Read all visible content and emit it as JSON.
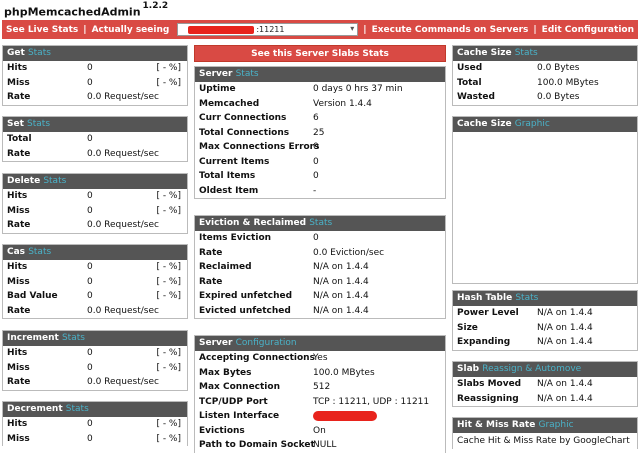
{
  "app": {
    "title": "phpMemcachedAdmin",
    "version": "1.2.2"
  },
  "topbar": {
    "live_stats": "See Live Stats",
    "actually_seeing": "Actually seeing",
    "server_port": ":11211",
    "execute_commands": "Execute Commands on Servers",
    "edit_configuration": "Edit Configuration"
  },
  "left": {
    "get": {
      "title": "Get",
      "accent": "Stats",
      "rows": [
        {
          "k": "Hits",
          "v": "0",
          "p": "[ - %]"
        },
        {
          "k": "Miss",
          "v": "0",
          "p": "[ - %]"
        },
        {
          "k": "Rate",
          "v": "0.0 Request/sec",
          "p": ""
        }
      ]
    },
    "set": {
      "title": "Set",
      "accent": "Stats",
      "rows": [
        {
          "k": "Total",
          "v": "0",
          "p": ""
        },
        {
          "k": "Rate",
          "v": "0.0 Request/sec",
          "p": ""
        }
      ]
    },
    "delete": {
      "title": "Delete",
      "accent": "Stats",
      "rows": [
        {
          "k": "Hits",
          "v": "0",
          "p": "[ - %]"
        },
        {
          "k": "Miss",
          "v": "0",
          "p": "[ - %]"
        },
        {
          "k": "Rate",
          "v": "0.0 Request/sec",
          "p": ""
        }
      ]
    },
    "cas": {
      "title": "Cas",
      "accent": "Stats",
      "rows": [
        {
          "k": "Hits",
          "v": "0",
          "p": "[ - %]"
        },
        {
          "k": "Miss",
          "v": "0",
          "p": "[ - %]"
        },
        {
          "k": "Bad Value",
          "v": "0",
          "p": "[ - %]"
        },
        {
          "k": "Rate",
          "v": "0.0 Request/sec",
          "p": ""
        }
      ]
    },
    "increment": {
      "title": "Increment",
      "accent": "Stats",
      "rows": [
        {
          "k": "Hits",
          "v": "0",
          "p": "[ - %]"
        },
        {
          "k": "Miss",
          "v": "0",
          "p": "[ - %]"
        },
        {
          "k": "Rate",
          "v": "0.0 Request/sec",
          "p": ""
        }
      ]
    },
    "decrement": {
      "title": "Decrement",
      "accent": "Stats",
      "rows": [
        {
          "k": "Hits",
          "v": "0",
          "p": "[ - %]"
        },
        {
          "k": "Miss",
          "v": "0",
          "p": "[ - %]"
        }
      ]
    }
  },
  "middle": {
    "slabs_button": "See this Server Slabs Stats",
    "server_stats": {
      "title": "Server",
      "accent": "Stats",
      "rows": [
        {
          "k": "Uptime",
          "v": "0 days 0 hrs 37 min"
        },
        {
          "k": "Memcached",
          "v": "Version 1.4.4"
        },
        {
          "k": "Curr Connections",
          "v": "6"
        },
        {
          "k": "Total Connections",
          "v": "25"
        },
        {
          "k": "Max Connections Errors",
          "v": "0"
        },
        {
          "k": "Current Items",
          "v": "0"
        },
        {
          "k": "Total Items",
          "v": "0"
        },
        {
          "k": "Oldest Item",
          "v": "-"
        }
      ]
    },
    "eviction": {
      "title": "Eviction & Reclaimed",
      "accent": "Stats",
      "rows": [
        {
          "k": "Items Eviction",
          "v": "0"
        },
        {
          "k": "Rate",
          "v": "0.0 Eviction/sec"
        },
        {
          "k": "Reclaimed",
          "v": "N/A on 1.4.4"
        },
        {
          "k": "Rate",
          "v": "N/A on 1.4.4"
        },
        {
          "k": "Expired unfetched",
          "v": "N/A on 1.4.4"
        },
        {
          "k": "Evicted unfetched",
          "v": "N/A on 1.4.4"
        }
      ]
    },
    "config": {
      "title": "Server",
      "accent": "Configuration",
      "rows": [
        {
          "k": "Accepting Connections",
          "v": "Yes"
        },
        {
          "k": "Max Bytes",
          "v": "100.0 MBytes"
        },
        {
          "k": "Max Connection",
          "v": "512"
        },
        {
          "k": "TCP/UDP Port",
          "v": "TCP : 11211, UDP : 11211"
        },
        {
          "k": "Listen Interface",
          "v": ""
        },
        {
          "k": "Evictions",
          "v": "On"
        },
        {
          "k": "Path to Domain Socket",
          "v": "NULL"
        }
      ]
    }
  },
  "right": {
    "cache_size": {
      "title": "Cache Size",
      "accent": "Stats",
      "rows": [
        {
          "k": "Used",
          "v": "0.0 Bytes"
        },
        {
          "k": "Total",
          "v": "100.0 MBytes"
        },
        {
          "k": "Wasted",
          "v": "0.0 Bytes"
        }
      ]
    },
    "cache_size_graphic": {
      "title": "Cache Size",
      "accent": "Graphic"
    },
    "hash_table": {
      "title": "Hash Table",
      "accent": "Stats",
      "rows": [
        {
          "k": "Power Level",
          "v": "N/A on 1.4.4"
        },
        {
          "k": "Size",
          "v": "N/A on 1.4.4"
        },
        {
          "k": "Expanding",
          "v": "N/A on 1.4.4"
        }
      ]
    },
    "slab": {
      "title": "Slab",
      "accent": "Reassign & Automove",
      "rows": [
        {
          "k": "Slabs Moved",
          "v": "N/A on 1.4.4"
        },
        {
          "k": "Reassigning",
          "v": "N/A on 1.4.4"
        }
      ]
    },
    "hit_miss": {
      "title": "Hit & Miss Rate",
      "accent": "Graphic",
      "text": "Cache Hit & Miss Rate by GoogleChart"
    }
  },
  "colors": {
    "accent_red": "#d94a44",
    "header_gray": "#555555",
    "accent_teal": "#4ab2c8"
  }
}
